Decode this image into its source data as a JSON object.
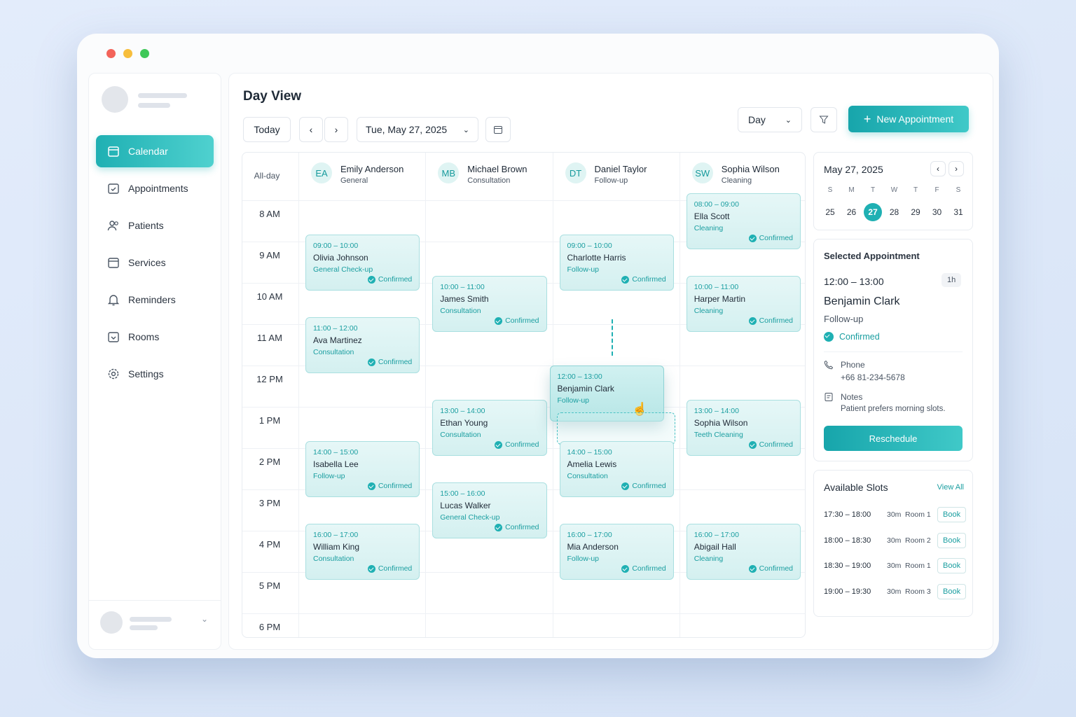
{
  "sidebar": {
    "nav": [
      "Calendar",
      "Appointments",
      "Patients",
      "Services",
      "Reminders",
      "Rooms",
      "Settings"
    ]
  },
  "header": {
    "title": "Day View",
    "today": "Today",
    "date": "Tue, May 27, 2025",
    "view": "Day",
    "new_button": "New Appointment"
  },
  "calendar": {
    "all_day": "All-day",
    "times": [
      "8 AM",
      "9 AM",
      "10 AM",
      "11 AM",
      "12 PM",
      "1 PM",
      "2 PM",
      "3 PM",
      "4 PM",
      "5 PM",
      "6 PM"
    ],
    "providers": [
      {
        "initials": "EA",
        "name": "Emily Anderson",
        "role": "General",
        "appointments": [
          {
            "time": "09:00 – 10:00",
            "patient": "Olivia Johnson",
            "service": "General Check-up",
            "status": "Confirmed"
          },
          {
            "time": "11:00 – 12:00",
            "patient": "Ava Martinez",
            "service": "Consultation",
            "status": "Confirmed"
          },
          {
            "time": "14:00 – 15:00",
            "patient": "Isabella Lee",
            "service": "Follow-up",
            "status": "Confirmed"
          },
          {
            "time": "16:00 – 17:00",
            "patient": "William King",
            "service": "Consultation",
            "status": "Confirmed"
          }
        ]
      },
      {
        "initials": "MB",
        "name": "Michael Brown",
        "role": "Consultation",
        "appointments": [
          {
            "time": "10:00 – 11:00",
            "patient": "James Smith",
            "service": "Consultation",
            "status": "Confirmed"
          },
          {
            "time": "13:00 – 14:00",
            "patient": "Ethan Young",
            "service": "Consultation",
            "status": "Confirmed"
          },
          {
            "time": "15:00 – 16:00",
            "patient": "Lucas Walker",
            "service": "General Check-up",
            "status": "Confirmed"
          }
        ]
      },
      {
        "initials": "DT",
        "name": "Daniel Taylor",
        "role": "Follow-up",
        "appointments": [
          {
            "time": "09:00 – 10:00",
            "patient": "Charlotte Harris",
            "service": "Follow-up",
            "status": "Confirmed"
          },
          {
            "time": "12:00 – 13:00",
            "patient": "Benjamin Clark",
            "service": "Follow-up"
          },
          {
            "time": "14:00 – 15:00",
            "patient": "Amelia Lewis",
            "service": "Consultation",
            "status": "Confirmed"
          },
          {
            "time": "16:00 – 17:00",
            "patient": "Mia Anderson",
            "service": "Follow-up",
            "status": "Confirmed"
          }
        ]
      },
      {
        "initials": "SW",
        "name": "Sophia Wilson",
        "role": "Cleaning",
        "appointments": [
          {
            "time": "08:00 – 09:00",
            "patient": "Ella Scott",
            "service": "Cleaning",
            "status": "Confirmed"
          },
          {
            "time": "10:00 – 11:00",
            "patient": "Harper Martin",
            "service": "Cleaning",
            "status": "Confirmed"
          },
          {
            "time": "13:00 – 14:00",
            "patient": "Sophia Wilson",
            "service": "Teeth Cleaning",
            "status": "Confirmed"
          },
          {
            "time": "16:00 – 17:00",
            "patient": "Abigail Hall",
            "service": "Cleaning",
            "status": "Confirmed"
          }
        ]
      }
    ]
  },
  "mini_calendar": {
    "month": "May 27, 2025",
    "weekdays": [
      "S",
      "M",
      "T",
      "W",
      "T",
      "F",
      "S"
    ],
    "days": [
      25,
      26,
      27,
      28,
      29,
      30,
      31
    ]
  },
  "selected": {
    "title": "Selected Appointment",
    "time": "12:00 – 13:00",
    "duration": "1h",
    "name": "Benjamin Clark",
    "service": "Follow-up",
    "status": "Confirmed",
    "phone_label": "Phone",
    "phone": "+66 81-234-5678",
    "notes_label": "Notes",
    "notes": "Patient prefers morning slots.",
    "button": "Reschedule"
  },
  "slots": {
    "title": "Available Slots",
    "view_all": "View All",
    "items": [
      {
        "time": "17:30 – 18:00",
        "duration": "30m",
        "room": "Room 1",
        "action": "Book"
      },
      {
        "time": "18:00 – 18:30",
        "duration": "30m",
        "room": "Room 2",
        "action": "Book"
      },
      {
        "time": "18:30 – 19:00",
        "duration": "30m",
        "room": "Room 1",
        "action": "Book"
      },
      {
        "time": "19:00 – 19:30",
        "duration": "30m",
        "room": "Room 3",
        "action": "Book"
      }
    ]
  }
}
